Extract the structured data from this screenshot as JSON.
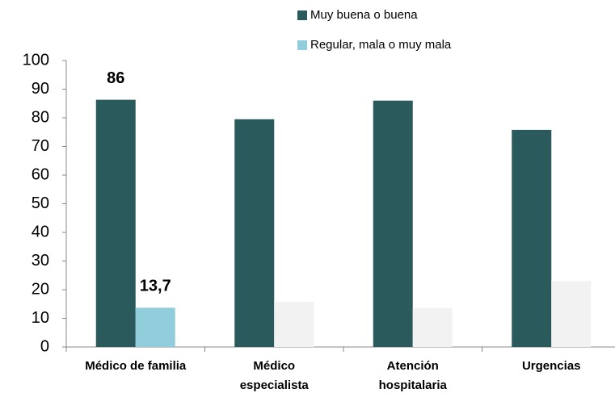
{
  "chart_data": {
    "type": "bar",
    "categories": [
      "Médico de familia",
      "Médico\nespecialista",
      "Atención\nhospitalaria",
      "Urgencias"
    ],
    "series": [
      {
        "name": "Muy buena o buena",
        "color": "#2a5a5c",
        "colors": [
          "#2a5a5c",
          "#2a5a5c",
          "#2a5a5c",
          "#2a5a5c"
        ],
        "values": [
          86.3,
          79.5,
          86,
          75.8
        ],
        "value_labels": [
          "86",
          null,
          null,
          null
        ]
      },
      {
        "name": "Regular, mala o muy mala",
        "color": "#92cddc",
        "colors": [
          "#92cddc",
          "#f2f2f2",
          "#f2f2f2",
          "#f2f2f2"
        ],
        "values": [
          13.7,
          15.8,
          13.6,
          23
        ],
        "value_labels": [
          "13,7",
          null,
          null,
          null
        ]
      }
    ],
    "ylim": [
      0,
      100
    ],
    "yticks": [
      0,
      10,
      20,
      30,
      40,
      50,
      60,
      70,
      80,
      90,
      100
    ],
    "grid": false
  }
}
